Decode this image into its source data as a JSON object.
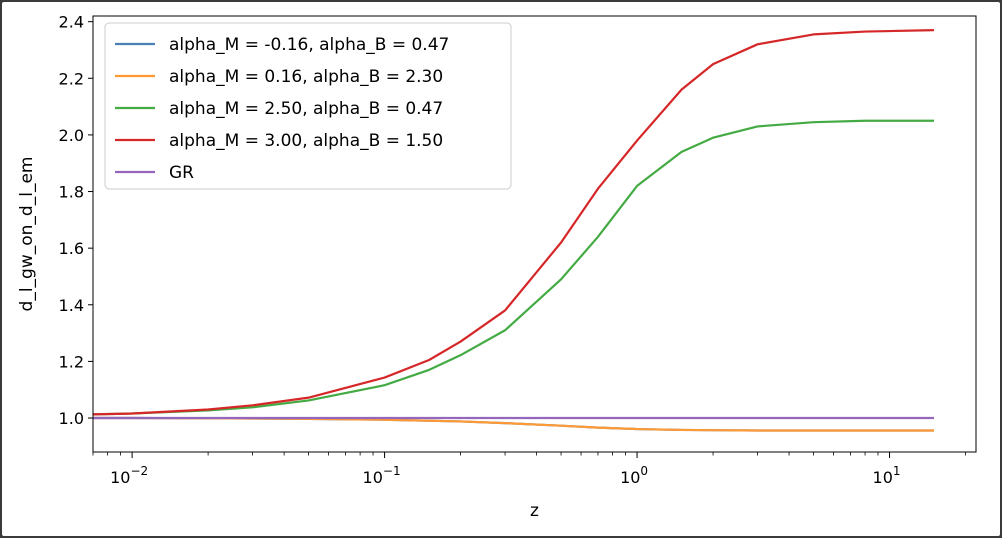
{
  "chart_data": {
    "type": "line",
    "xscale": "log",
    "xlabel": "z",
    "ylabel": "d_l_gw_on_d_l_em",
    "xlim": [
      0.007,
      22
    ],
    "ylim": [
      0.88,
      2.42
    ],
    "x_ticks": [
      {
        "value": 0.01,
        "base": "10",
        "exp": "−2"
      },
      {
        "value": 0.1,
        "base": "10",
        "exp": "−1"
      },
      {
        "value": 1,
        "base": "10",
        "exp": "0"
      },
      {
        "value": 10,
        "base": "10",
        "exp": "1"
      }
    ],
    "y_ticks": [
      "1.0",
      "1.2",
      "1.4",
      "1.6",
      "1.8",
      "2.0",
      "2.2",
      "2.4"
    ],
    "grid": false,
    "legend_position": "top-left",
    "series": [
      {
        "name": "alpha_M = -0.16, alpha_B = 0.47",
        "color": "#4c7fb5",
        "x": [
          0.007,
          0.01,
          0.02,
          0.05,
          0.1,
          0.2,
          0.3,
          0.5,
          0.7,
          1,
          1.5,
          2,
          3,
          5,
          8,
          15
        ],
        "y": [
          1.0,
          1.0,
          0.999,
          0.997,
          0.994,
          0.988,
          0.982,
          0.973,
          0.966,
          0.961,
          0.958,
          0.957,
          0.956,
          0.956,
          0.956,
          0.956
        ]
      },
      {
        "name": "alpha_M = 0.16, alpha_B = 2.30",
        "color": "#ff9933",
        "x": [
          0.007,
          0.01,
          0.02,
          0.05,
          0.1,
          0.2,
          0.3,
          0.5,
          0.7,
          1,
          1.5,
          2,
          3,
          5,
          8,
          15
        ],
        "y": [
          1.0,
          1.0,
          0.999,
          0.997,
          0.994,
          0.988,
          0.982,
          0.973,
          0.966,
          0.961,
          0.958,
          0.957,
          0.956,
          0.956,
          0.956,
          0.956
        ]
      },
      {
        "name": "alpha_M = 2.50, alpha_B = 0.47",
        "color": "#44aa44",
        "x": [
          0.007,
          0.01,
          0.02,
          0.03,
          0.05,
          0.1,
          0.15,
          0.2,
          0.3,
          0.5,
          0.7,
          1,
          1.5,
          2,
          3,
          5,
          8,
          15
        ],
        "y": [
          1.013,
          1.016,
          1.027,
          1.038,
          1.062,
          1.116,
          1.17,
          1.222,
          1.31,
          1.49,
          1.64,
          1.82,
          1.94,
          1.99,
          2.03,
          2.045,
          2.05,
          2.05
        ]
      },
      {
        "name": "alpha_M = 3.00, alpha_B = 1.50",
        "color": "#d62728",
        "x": [
          0.007,
          0.01,
          0.02,
          0.03,
          0.05,
          0.1,
          0.15,
          0.2,
          0.3,
          0.5,
          0.7,
          1,
          1.5,
          2,
          3,
          5,
          8,
          15
        ],
        "y": [
          1.013,
          1.016,
          1.03,
          1.045,
          1.072,
          1.143,
          1.205,
          1.27,
          1.38,
          1.62,
          1.81,
          1.98,
          2.16,
          2.25,
          2.32,
          2.355,
          2.365,
          2.37
        ]
      },
      {
        "name": "GR",
        "color": "#9467bd",
        "x": [
          0.007,
          15
        ],
        "y": [
          1.0,
          1.0
        ]
      }
    ]
  }
}
